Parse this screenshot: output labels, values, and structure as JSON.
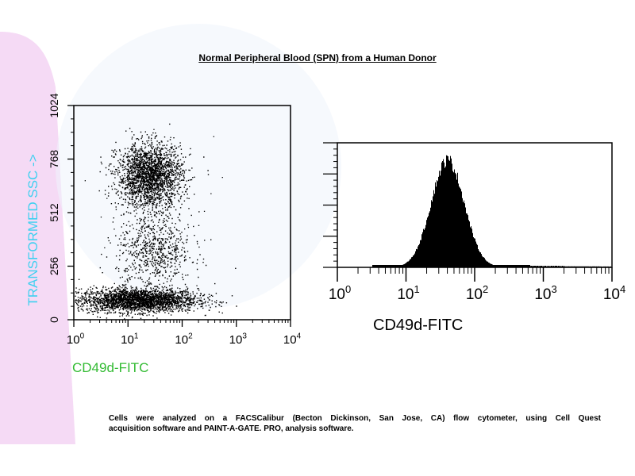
{
  "title": "Normal Peripheral Blood (SPN) from a Human Donor",
  "caption": {
    "line1": "Cells were analyzed on a FACSCalibur (Becton Dickinson, San Jose, CA) flow cytometer, using Cell Quest",
    "line2": "acquisition software and PAINT-A-GATE. PRO, analysis software."
  },
  "colors": {
    "scatter_ylabel": "#3fd0f0",
    "scatter_xlabel": "#33bb33",
    "background_tint": "#f4d6f4"
  },
  "chart_data": [
    {
      "type": "scatter",
      "xlabel": "CD49d-FITC",
      "ylabel": "TRANSFORMED SSC ->",
      "x_scale": "log",
      "xlim": [
        1,
        10000
      ],
      "ylim": [
        0,
        1024
      ],
      "x_ticks": [
        {
          "base": "10",
          "exp": "0"
        },
        {
          "base": "10",
          "exp": "1"
        },
        {
          "base": "10",
          "exp": "2"
        },
        {
          "base": "10",
          "exp": "3"
        },
        {
          "base": "10",
          "exp": "4"
        }
      ],
      "y_ticks": [
        "0",
        "256",
        "512",
        "768",
        "1024"
      ],
      "clusters": [
        {
          "x_center": 15,
          "y_center": 95,
          "x_spread_decades": 0.55,
          "y_spread": 28,
          "count": 2600
        },
        {
          "x_center": 30,
          "y_center": 330,
          "x_spread_decades": 0.35,
          "y_spread": 90,
          "count": 700
        },
        {
          "x_center": 25,
          "y_center": 690,
          "x_spread_decades": 0.3,
          "y_spread": 75,
          "count": 2200
        }
      ]
    },
    {
      "type": "histogram",
      "xlabel": "CD49d-FITC",
      "x_scale": "log",
      "xlim": [
        1,
        10000
      ],
      "x_ticks": [
        {
          "base": "10",
          "exp": "0"
        },
        {
          "base": "10",
          "exp": "1"
        },
        {
          "base": "10",
          "exp": "2"
        },
        {
          "base": "10",
          "exp": "3"
        },
        {
          "base": "10",
          "exp": "4"
        }
      ],
      "peak_x": 40,
      "log_sigma_decades": 0.24,
      "peak_height_fraction": 0.87
    }
  ]
}
